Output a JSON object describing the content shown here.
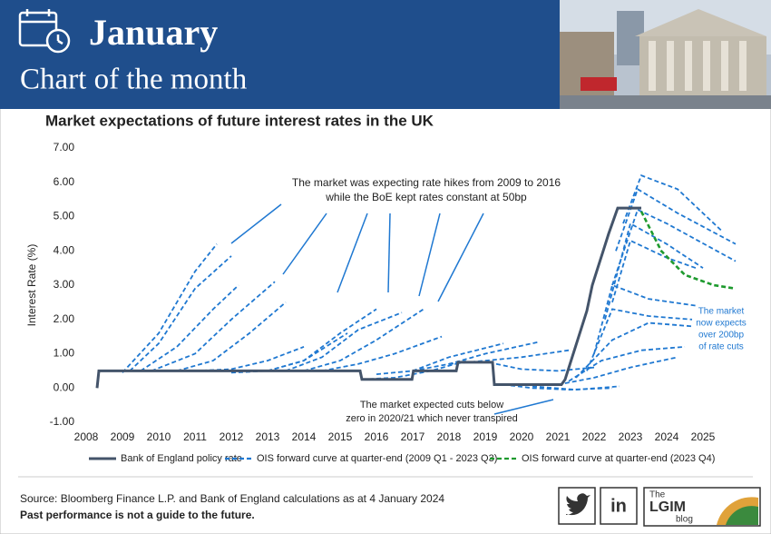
{
  "header": {
    "title": "January",
    "subtitle": "Chart of the month"
  },
  "chart_data": {
    "type": "line",
    "title": "Market expectations of future interest rates in the UK",
    "y_label": "Interest Rate (%)",
    "xlim": [
      2008,
      2026
    ],
    "xticks": [
      2008,
      2009,
      2010,
      2011,
      2012,
      2013,
      2014,
      2015,
      2016,
      2017,
      2018,
      2019,
      2020,
      2021,
      2022,
      2023,
      2024,
      2025
    ],
    "ylim": [
      -1,
      7
    ],
    "yticks": [
      {
        "value": -1,
        "label": "-1.00"
      },
      {
        "value": 0,
        "label": "0.00"
      },
      {
        "value": 1,
        "label": "1.00"
      },
      {
        "value": 2,
        "label": "2.00"
      },
      {
        "value": 3,
        "label": "3.00"
      },
      {
        "value": 4,
        "label": "4.00"
      },
      {
        "value": 5,
        "label": "5.00"
      },
      {
        "value": 6,
        "label": "6.00"
      },
      {
        "value": 7,
        "label": "7.00"
      }
    ],
    "grid": false,
    "series": [
      {
        "name": "Bank of England policy rate",
        "color": "#44546a",
        "x": [
          2008.3,
          2008.35,
          2015.55,
          2015.6,
          2016.98,
          2017.02,
          2018.2,
          2018.25,
          2019.2,
          2019.25,
          2021.1,
          2021.2,
          2021.35,
          2021.5,
          2021.65,
          2021.8,
          2021.95,
          2022.1,
          2022.25,
          2022.4,
          2022.65,
          2023.3
        ],
        "values": [
          0,
          0.5,
          0.5,
          0.25,
          0.25,
          0.5,
          0.5,
          0.75,
          0.75,
          0.1,
          0.1,
          0.25,
          0.75,
          1.25,
          1.75,
          2.25,
          3.0,
          3.5,
          4.0,
          4.5,
          5.25,
          5.25
        ]
      },
      {
        "name": "OIS forward curve at quarter-end (2009 Q1 - 2023 Q3)",
        "color": "#1f78d1",
        "curves": [
          {
            "x": [
              2009,
              2010,
              2011,
              2011.6
            ],
            "values": [
              0.45,
              1.6,
              3.4,
              4.2
            ]
          },
          {
            "x": [
              2009.2,
              2010,
              2011,
              2012
            ],
            "values": [
              0.5,
              1.3,
              2.9,
              3.85
            ]
          },
          {
            "x": [
              2009.5,
              2010.5,
              2011.5,
              2012.2
            ],
            "values": [
              0.5,
              1.2,
              2.3,
              3.0
            ]
          },
          {
            "x": [
              2009.8,
              2011,
              2012,
              2013.2
            ],
            "values": [
              0.5,
              1.0,
              2.0,
              3.1
            ]
          },
          {
            "x": [
              2010.5,
              2011.5,
              2012.5,
              2013.5
            ],
            "values": [
              0.5,
              0.8,
              1.6,
              2.5
            ]
          },
          {
            "x": [
              2011,
              2012,
              2013,
              2014
            ],
            "values": [
              0.5,
              0.55,
              0.8,
              1.2
            ]
          },
          {
            "x": [
              2012,
              2013,
              2014,
              2015.2
            ],
            "values": [
              0.45,
              0.5,
              0.8,
              1.6
            ]
          },
          {
            "x": [
              2013,
              2014,
              2015,
              2016
            ],
            "values": [
              0.5,
              0.8,
              1.6,
              2.3
            ]
          },
          {
            "x": [
              2013.5,
              2014.5,
              2015.5,
              2016.7
            ],
            "values": [
              0.5,
              0.9,
              1.7,
              2.2
            ]
          },
          {
            "x": [
              2014,
              2015,
              2016,
              2017.3
            ],
            "values": [
              0.5,
              0.8,
              1.4,
              2.3
            ]
          },
          {
            "x": [
              2014.5,
              2015.5,
              2016.5,
              2017.8
            ],
            "values": [
              0.5,
              0.7,
              1.0,
              1.5
            ]
          },
          {
            "x": [
              2015.6,
              2016.5,
              2017.5,
              2018.5
            ],
            "values": [
              0.25,
              0.3,
              0.5,
              0.8
            ]
          },
          {
            "x": [
              2016,
              2017,
              2018,
              2019.5
            ],
            "values": [
              0.4,
              0.5,
              0.9,
              1.3
            ]
          },
          {
            "x": [
              2017,
              2018,
              2019,
              2020.5
            ],
            "values": [
              0.5,
              0.7,
              1.0,
              1.35
            ]
          },
          {
            "x": [
              2018,
              2019,
              2020,
              2021.3
            ],
            "values": [
              0.7,
              0.8,
              0.9,
              1.1
            ]
          },
          {
            "x": [
              2019.3,
              2020,
              2021,
              2022
            ],
            "values": [
              0.7,
              0.55,
              0.5,
              0.6
            ]
          },
          {
            "x": [
              2019.5,
              2020.3,
              2021.3,
              2022.5
            ],
            "values": [
              0.1,
              0,
              -0.05,
              0
            ]
          },
          {
            "x": [
              2020.3,
              2021.5,
              2022.7
            ],
            "values": [
              0.05,
              -0.05,
              0.05
            ]
          },
          {
            "x": [
              2021,
              2022,
              2023,
              2024.3
            ],
            "values": [
              0.1,
              0.3,
              0.6,
              0.9
            ]
          },
          {
            "x": [
              2021.3,
              2022.2,
              2023.3,
              2024.5
            ],
            "values": [
              0.2,
              0.8,
              1.1,
              1.2
            ]
          },
          {
            "x": [
              2021.5,
              2022.5,
              2023.5,
              2024.7
            ],
            "values": [
              0.3,
              1.4,
              1.9,
              1.8
            ]
          },
          {
            "x": [
              2021.8,
              2022.5,
              2023.5,
              2024.7
            ],
            "values": [
              0.5,
              2.3,
              2.1,
              2.0
            ]
          },
          {
            "x": [
              2022,
              2022.5,
              2023.5,
              2024.8
            ],
            "values": [
              1.0,
              3.0,
              2.6,
              2.4
            ]
          },
          {
            "x": [
              2022.3,
              2023,
              2024,
              2025
            ],
            "values": [
              2.0,
              4.8,
              4.2,
              3.5
            ]
          },
          {
            "x": [
              2022.5,
              2023.2,
              2024,
              2025.9
            ],
            "values": [
              3.0,
              5.2,
              4.8,
              3.7
            ]
          },
          {
            "x": [
              2022.6,
              2023.2,
              2024.3,
              2025.9
            ],
            "values": [
              4.0,
              5.8,
              5.1,
              4.2
            ]
          },
          {
            "x": [
              2022.8,
              2023.3,
              2024.3,
              2025.5
            ],
            "values": [
              4.8,
              6.2,
              5.8,
              4.6
            ]
          },
          {
            "x": [
              2022.5,
              2023,
              2024,
              2024.8
            ],
            "values": [
              2.5,
              4.3,
              3.8,
              3.5
            ]
          }
        ]
      },
      {
        "name": "OIS forward curve at quarter-end (2023 Q4)",
        "color": "#1e9a2e",
        "x": [
          2023.3,
          2023.85,
          2024.5,
          2025.3,
          2025.9
        ],
        "values": [
          5.15,
          4.0,
          3.3,
          3.0,
          2.9
        ]
      }
    ],
    "annotations": [
      [
        "The market was expecting rate hikes from 2009 to 2016",
        "while the BoE kept rates constant at 50bp"
      ],
      [
        "The market expected cuts below",
        "zero in 2020/21 which never transpired"
      ],
      [
        "The market",
        "now expects",
        "over 200bp",
        "of rate cuts"
      ]
    ]
  },
  "footer": {
    "source": "Source: Bloomberg Finance L.P. and Bank of England calculations as at 4 January 2024",
    "disclaimer": "Past performance is not a guide to the future.",
    "logo": [
      "The",
      "LGIM",
      "blog"
    ],
    "social": [
      "in"
    ]
  }
}
